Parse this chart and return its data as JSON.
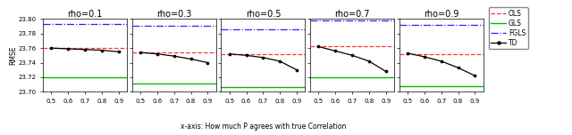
{
  "rho_values": [
    0.1,
    0.3,
    0.5,
    0.7,
    0.9
  ],
  "x_ticks": [
    0.5,
    0.6,
    0.7,
    0.8,
    0.9
  ],
  "td_data": {
    "0.1": [
      23.76,
      23.759,
      23.758,
      23.757,
      23.755
    ],
    "0.3": [
      23.754,
      23.752,
      23.749,
      23.745,
      23.74
    ],
    "0.5": [
      23.752,
      23.75,
      23.747,
      23.742,
      23.73
    ],
    "0.7": [
      23.762,
      23.756,
      23.75,
      23.742,
      23.728
    ],
    "0.9": [
      23.753,
      23.748,
      23.742,
      23.733,
      23.722
    ]
  },
  "ols_data": {
    "0.1": 23.76,
    "0.3": 23.754,
    "0.5": 23.752,
    "0.7": 23.762,
    "0.9": 23.752
  },
  "gls_data": {
    "0.1": 23.72,
    "0.3": 23.712,
    "0.5": 23.706,
    "0.7": 23.72,
    "0.9": 23.708
  },
  "fgls_data": {
    "0.1": 23.793,
    "0.3": 23.79,
    "0.5": 23.786,
    "0.7": 23.798,
    "0.9": 23.792
  },
  "ylim": [
    23.7,
    23.8
  ],
  "yticks": [
    23.7,
    23.72,
    23.74,
    23.76,
    23.78,
    23.8
  ],
  "ols_color": "#ff3333",
  "gls_color": "#00bb00",
  "fgls_color": "#2222ff",
  "td_color": "#000000",
  "xlabel": "x-axis: How much P agrees with true Correlation",
  "ylabel": "RMSE",
  "legend_labels": [
    "OLS",
    "GLS",
    "FGLS",
    "TD"
  ],
  "figsize": [
    6.4,
    1.52
  ],
  "dpi": 100,
  "title_fontsize": 7,
  "tick_fontsize": 5,
  "label_fontsize": 5.5,
  "legend_fontsize": 5.5
}
